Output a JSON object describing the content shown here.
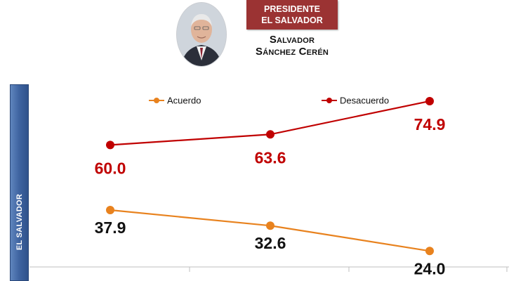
{
  "header": {
    "badge_line1": "PRESIDENTE",
    "badge_line2": "EL SALVADOR",
    "name_line1": "Salvador",
    "name_line2": "Sánchez Cerén",
    "photo_icon": "president-portrait"
  },
  "sidebar": {
    "label": "EL SALVADOR"
  },
  "colors": {
    "acuerdo": "#e8821e",
    "desacuerdo": "#c00000",
    "badge": "#9b3333",
    "sidebar": "#3e63a0"
  },
  "chart_data": {
    "type": "line",
    "categories": [
      "",
      "",
      ""
    ],
    "legend_placement": "top",
    "series": [
      {
        "name": "Acuerdo",
        "values": [
          37.9,
          32.6,
          24.0
        ],
        "labels": [
          "37.9",
          "32.6",
          "24.0"
        ],
        "color": "#e8821e"
      },
      {
        "name": "Desacuerdo",
        "values": [
          60.0,
          63.6,
          74.9
        ],
        "labels": [
          "60.0",
          "63.6",
          "74.9"
        ],
        "color": "#c00000"
      }
    ],
    "ylim": [
      15,
      83
    ]
  }
}
